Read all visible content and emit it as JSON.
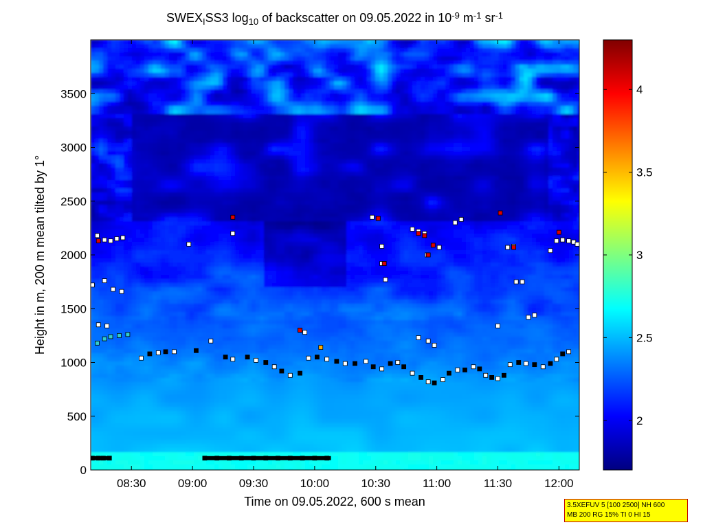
{
  "chart_data": {
    "type": "heatmap",
    "title": {
      "parts": [
        {
          "t": "SWEX",
          "s": "n"
        },
        {
          "t": "I",
          "s": "sub"
        },
        {
          "t": "SS3 log",
          "s": "n"
        },
        {
          "t": "10",
          "s": "sub"
        },
        {
          "t": " of backscatter on 09.05.2022 in 10",
          "s": "n"
        },
        {
          "t": "-9",
          "s": "sup"
        },
        {
          "t": " m",
          "s": "n"
        },
        {
          "t": "-1",
          "s": "sup"
        },
        {
          "t": " sr",
          "s": "n"
        },
        {
          "t": "-1",
          "s": "sup"
        }
      ]
    },
    "xlabel": "Time on 09.05.2022, 600 s mean",
    "ylabel": "Height in m, 200 m mean tilted by 1°",
    "x_range_hours": [
      8.1667,
      12.1667
    ],
    "y_range_m": [
      0,
      4000
    ],
    "x_ticks": [
      {
        "label": "08:30",
        "value": 8.5
      },
      {
        "label": "09:00",
        "value": 9.0
      },
      {
        "label": "09:30",
        "value": 9.5
      },
      {
        "label": "10:00",
        "value": 10.0
      },
      {
        "label": "10:30",
        "value": 10.5
      },
      {
        "label": "11:00",
        "value": 11.0
      },
      {
        "label": "11:30",
        "value": 11.5
      },
      {
        "label": "12:00",
        "value": 12.0
      }
    ],
    "y_ticks": [
      {
        "label": "0",
        "value": 0
      },
      {
        "label": "500",
        "value": 500
      },
      {
        "label": "1000",
        "value": 1000
      },
      {
        "label": "1500",
        "value": 1500
      },
      {
        "label": "2000",
        "value": 2000
      },
      {
        "label": "2500",
        "value": 2500
      },
      {
        "label": "3000",
        "value": 3000
      },
      {
        "label": "3500",
        "value": 3500
      }
    ],
    "colorbar": {
      "range": [
        1.7,
        4.3
      ],
      "ticks": [
        {
          "label": "2",
          "value": 2.0
        },
        {
          "label": "2.5",
          "value": 2.5
        },
        {
          "label": "3",
          "value": 3.0
        },
        {
          "label": "3.5",
          "value": 3.5
        },
        {
          "label": "4",
          "value": 4.0
        }
      ]
    },
    "marker_series": [
      {
        "role": "cloud-base",
        "heights_m": [
          1180,
          1220,
          1240,
          1250,
          1260,
          1040,
          1080,
          1090,
          1100,
          1100,
          1110,
          1200,
          1050,
          1030,
          1050,
          1020,
          1000,
          960,
          920,
          880,
          900,
          1040,
          1050,
          1030,
          1010,
          990,
          990,
          1010,
          960,
          940,
          990,
          1000,
          960,
          900,
          860,
          820,
          810,
          840,
          900,
          930,
          930,
          960,
          940,
          880,
          860,
          850,
          880,
          980,
          1000,
          990,
          980,
          960,
          990,
          1030,
          1080,
          1100
        ],
        "times_h": [
          8.22,
          8.28,
          8.33,
          8.4,
          8.47,
          8.58,
          8.65,
          8.72,
          8.78,
          8.85,
          9.03,
          9.15,
          9.27,
          9.33,
          9.45,
          9.52,
          9.6,
          9.67,
          9.73,
          9.8,
          9.88,
          9.95,
          10.02,
          10.1,
          10.18,
          10.25,
          10.33,
          10.42,
          10.48,
          10.55,
          10.62,
          10.68,
          10.73,
          10.8,
          10.87,
          10.93,
          10.98,
          11.05,
          11.1,
          11.17,
          11.23,
          11.3,
          11.35,
          11.4,
          11.45,
          11.5,
          11.55,
          11.6,
          11.67,
          11.73,
          11.8,
          11.87,
          11.93,
          11.98,
          12.03,
          12.08
        ]
      },
      {
        "role": "upper-layer",
        "heights_m": [
          2180,
          2140,
          2130,
          2150,
          2160,
          2100,
          2200,
          2080,
          2350,
          2340,
          2240,
          2220,
          2200,
          2070,
          2300,
          2330,
          2070,
          2080,
          2040,
          2130,
          2140,
          2130,
          2120,
          2100
        ],
        "times_h": [
          8.22,
          8.28,
          8.33,
          8.38,
          8.43,
          8.97,
          9.33,
          10.55,
          10.47,
          10.52,
          10.8,
          10.85,
          10.9,
          11.02,
          11.15,
          11.2,
          11.58,
          11.63,
          11.93,
          11.98,
          12.03,
          12.08,
          12.12,
          12.15
        ]
      },
      {
        "role": "mid-layer",
        "heights_m": [
          1720,
          1760,
          1680,
          1660,
          1350,
          1340,
          1420,
          1440,
          1230,
          1200,
          1160,
          1340,
          1750,
          1750,
          1770,
          1920,
          2000,
          1300,
          1280
        ],
        "times_h": [
          8.18,
          8.28,
          8.35,
          8.42,
          8.23,
          8.3,
          11.75,
          11.8,
          10.85,
          10.93,
          10.98,
          11.5,
          11.65,
          11.7,
          10.58,
          10.55,
          10.92,
          9.88,
          9.92
        ]
      },
      {
        "role": "surface-layer",
        "heights_m": [
          110,
          110,
          110,
          110,
          110,
          110,
          110,
          110,
          110,
          110,
          110,
          110,
          110,
          110,
          110
        ],
        "times_h": [
          8.18,
          8.23,
          8.27,
          8.32,
          9.1,
          9.2,
          9.3,
          9.4,
          9.5,
          9.6,
          9.7,
          9.8,
          9.9,
          10.0,
          10.1
        ]
      },
      {
        "role": "high-backscatter",
        "heights_m": [
          2350,
          2340,
          2200,
          2180,
          2090,
          2000,
          1920,
          2390,
          2210,
          2070,
          1300,
          1140,
          2130
        ],
        "times_h": [
          9.33,
          10.52,
          10.85,
          10.9,
          10.97,
          10.93,
          10.57,
          11.52,
          12.0,
          11.63,
          9.88,
          10.05,
          8.23
        ]
      }
    ],
    "legend": "none",
    "grid": false
  },
  "info_box": {
    "line1": "3.5XEFUV 5 [100 2500] NH 600",
    "line2": "MB 200 RG 15% TI 0 HI 15"
  }
}
